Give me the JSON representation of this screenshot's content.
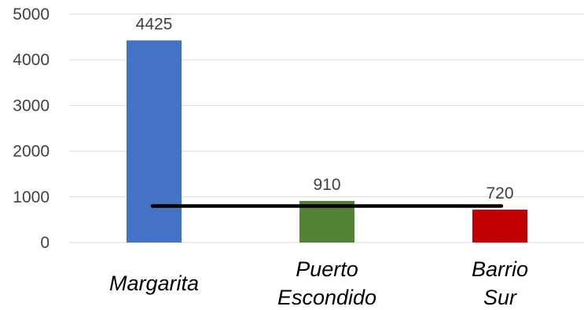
{
  "chart_data": {
    "type": "bar",
    "categories": [
      [
        "Margarita"
      ],
      [
        "Puerto",
        "Escondido"
      ],
      [
        "Barrio",
        "Sur"
      ]
    ],
    "values": [
      4425,
      910,
      720
    ],
    "data_labels": [
      "4425",
      "910",
      "720"
    ],
    "bar_colors": [
      "#4472c4",
      "#548235",
      "#c00000"
    ],
    "reference_line": {
      "value": 800,
      "color": "#000000"
    },
    "y_ticks": [
      "0",
      "1000",
      "2000",
      "3000",
      "4000",
      "5000"
    ],
    "ylim": [
      0,
      5000
    ],
    "grid": true,
    "legend": "none",
    "title": "",
    "xlabel": "",
    "ylabel": ""
  }
}
